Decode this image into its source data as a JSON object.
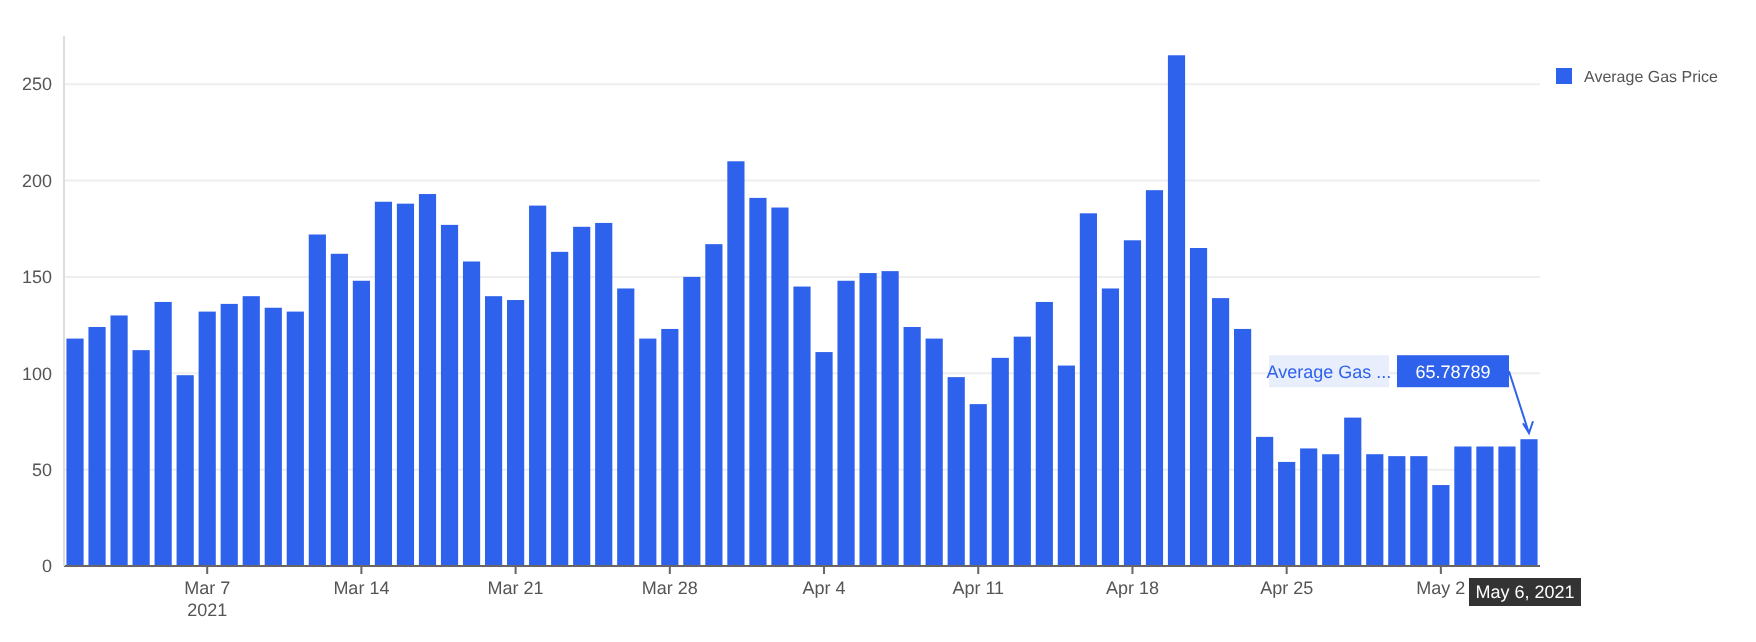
{
  "chart_data": {
    "type": "bar",
    "x": [
      "2021-03-01",
      "2021-03-02",
      "2021-03-03",
      "2021-03-04",
      "2021-03-05",
      "2021-03-06",
      "2021-03-07",
      "2021-03-08",
      "2021-03-09",
      "2021-03-10",
      "2021-03-11",
      "2021-03-12",
      "2021-03-13",
      "2021-03-14",
      "2021-03-15",
      "2021-03-16",
      "2021-03-17",
      "2021-03-18",
      "2021-03-19",
      "2021-03-20",
      "2021-03-21",
      "2021-03-22",
      "2021-03-23",
      "2021-03-24",
      "2021-03-25",
      "2021-03-26",
      "2021-03-27",
      "2021-03-28",
      "2021-03-29",
      "2021-03-30",
      "2021-03-31",
      "2021-04-01",
      "2021-04-02",
      "2021-04-03",
      "2021-04-04",
      "2021-04-05",
      "2021-04-06",
      "2021-04-07",
      "2021-04-08",
      "2021-04-09",
      "2021-04-10",
      "2021-04-11",
      "2021-04-12",
      "2021-04-13",
      "2021-04-14",
      "2021-04-15",
      "2021-04-16",
      "2021-04-17",
      "2021-04-18",
      "2021-04-19",
      "2021-04-20",
      "2021-04-21",
      "2021-04-22",
      "2021-04-23",
      "2021-04-24",
      "2021-04-25",
      "2021-04-26",
      "2021-04-27",
      "2021-04-28",
      "2021-04-29",
      "2021-04-30",
      "2021-05-01",
      "2021-05-02",
      "2021-05-03",
      "2021-05-04",
      "2021-05-05",
      "2021-05-06"
    ],
    "series": [
      {
        "name": "Average Gas Price",
        "color": "#2f62ec",
        "values": [
          118,
          124,
          130,
          112,
          137,
          99,
          132,
          136,
          140,
          134,
          132,
          172,
          162,
          148,
          189,
          188,
          193,
          177,
          158,
          140,
          138,
          187,
          163,
          176,
          178,
          144,
          118,
          123,
          150,
          167,
          210,
          191,
          186,
          145,
          111,
          148,
          152,
          153,
          124,
          118,
          98,
          84,
          108,
          119,
          137,
          104,
          183,
          144,
          169,
          195,
          265,
          165,
          139,
          123,
          67,
          54,
          61,
          58,
          77,
          58,
          57,
          57,
          42,
          62,
          62,
          62,
          65.78789
        ]
      }
    ],
    "xlim": [
      "2021-02-28T12:00",
      "2021-05-06T12:00"
    ],
    "xticks": [
      {
        "value": "2021-03-07",
        "label": "Mar 7\n2021"
      },
      {
        "value": "2021-03-14",
        "label": "Mar 14"
      },
      {
        "value": "2021-03-21",
        "label": "Mar 21"
      },
      {
        "value": "2021-03-28",
        "label": "Mar 28"
      },
      {
        "value": "2021-04-04",
        "label": "Apr 4"
      },
      {
        "value": "2021-04-11",
        "label": "Apr 11"
      },
      {
        "value": "2021-04-18",
        "label": "Apr 18"
      },
      {
        "value": "2021-04-25",
        "label": "Apr 25"
      },
      {
        "value": "2021-05-02",
        "label": "May 2"
      }
    ],
    "ylim": [
      0,
      275
    ],
    "yticks": [
      0,
      50,
      100,
      150,
      200,
      250
    ],
    "grid": "y",
    "legend": "top right",
    "annotations": [
      "Average Gas ...",
      {
        "text": "65.78789",
        "x": "2021-05-06",
        "y": 65.78789
      },
      "May 6, 2021"
    ]
  }
}
